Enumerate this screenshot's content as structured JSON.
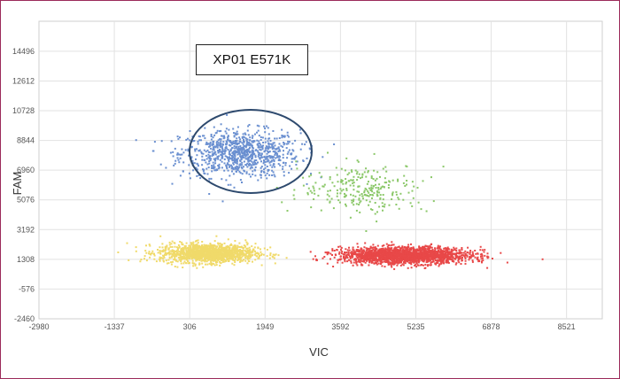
{
  "chart_data": {
    "type": "scatter",
    "title": "",
    "annotation": "XP01 E571K",
    "xlabel": "VIC",
    "ylabel": "FAM",
    "xlim": [
      -2980,
      9300
    ],
    "ylim": [
      -2460,
      16400
    ],
    "x_ticks": [
      -2980,
      -1337,
      306,
      1949,
      3592,
      5235,
      6878,
      8521
    ],
    "y_ticks": [
      -2460,
      -576,
      1308,
      3192,
      5076,
      6960,
      8844,
      10728,
      12612,
      14496
    ],
    "grid": true,
    "legend": "none",
    "clusters": [
      {
        "color": "#6a8fd0",
        "center": [
          1400,
          8000
        ],
        "spread": [
          650,
          750
        ],
        "count": 900,
        "circled": true
      },
      {
        "color": "#f0da6a",
        "center": [
          700,
          1700
        ],
        "spread": [
          520,
          300
        ],
        "count": 1400,
        "circled": false
      },
      {
        "color": "#e84848",
        "center": [
          5000,
          1550
        ],
        "spread": [
          700,
          260
        ],
        "count": 2000,
        "circled": false
      },
      {
        "color": "#8cc86a",
        "center": [
          4100,
          5800
        ],
        "spread": [
          700,
          800
        ],
        "count": 260,
        "circled": false
      }
    ],
    "colors": {
      "frame": "#9b2a5a",
      "grid": "#e2e2e2",
      "circle": "#2e4a6e"
    }
  }
}
